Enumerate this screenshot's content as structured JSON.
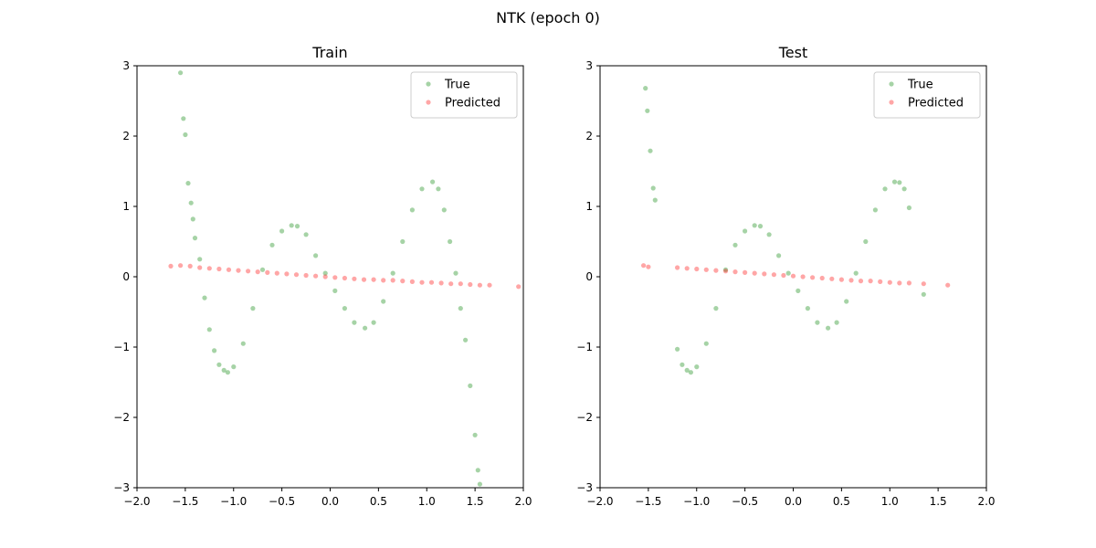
{
  "figure": {
    "suptitle": "NTK (epoch 0)"
  },
  "chart_data": [
    {
      "type": "scatter",
      "title": "Train",
      "xlim": [
        -2.0,
        2.0
      ],
      "ylim": [
        -3,
        3
      ],
      "xticks": [
        "−2.0",
        "−1.5",
        "−1.0",
        "−0.5",
        "0.0",
        "0.5",
        "1.0",
        "1.5",
        "2.0"
      ],
      "yticks": [
        "−3",
        "−2",
        "−1",
        "0",
        "1",
        "2",
        "3"
      ],
      "legend": "top-right",
      "grid": false,
      "series": [
        {
          "name": "True",
          "color": "#008000",
          "x": [
            -1.55,
            -1.52,
            -1.5,
            -1.47,
            -1.44,
            -1.42,
            -1.4,
            -1.35,
            -1.3,
            -1.25,
            -1.2,
            -1.15,
            -1.1,
            -1.06,
            -1.0,
            -0.9,
            -0.8,
            -0.7,
            -0.6,
            -0.5,
            -0.4,
            -0.34,
            -0.25,
            -0.15,
            -0.05,
            0.05,
            0.15,
            0.25,
            0.36,
            0.45,
            0.55,
            0.65,
            0.75,
            0.85,
            0.95,
            1.06,
            1.12,
            1.18,
            1.24,
            1.3,
            1.35,
            1.4,
            1.45,
            1.5,
            1.53,
            1.55
          ],
          "y": [
            2.9,
            2.25,
            2.02,
            1.33,
            1.05,
            0.82,
            0.55,
            0.25,
            -0.3,
            -0.75,
            -1.05,
            -1.25,
            -1.33,
            -1.36,
            -1.28,
            -0.95,
            -0.45,
            0.1,
            0.45,
            0.65,
            0.73,
            0.72,
            0.6,
            0.3,
            0.05,
            -0.2,
            -0.45,
            -0.65,
            -0.73,
            -0.65,
            -0.35,
            0.05,
            0.5,
            0.95,
            1.25,
            1.35,
            1.25,
            0.95,
            0.5,
            0.05,
            -0.45,
            -0.9,
            -1.55,
            -2.25,
            -2.75,
            -2.95
          ]
        },
        {
          "name": "Predicted",
          "color": "#ff0000",
          "x": [
            -1.65,
            -1.55,
            -1.45,
            -1.35,
            -1.25,
            -1.15,
            -1.05,
            -0.95,
            -0.85,
            -0.75,
            -0.65,
            -0.55,
            -0.45,
            -0.35,
            -0.25,
            -0.15,
            -0.05,
            0.05,
            0.15,
            0.25,
            0.35,
            0.45,
            0.55,
            0.65,
            0.75,
            0.85,
            0.95,
            1.05,
            1.15,
            1.25,
            1.35,
            1.45,
            1.55,
            1.65,
            1.95
          ],
          "y": [
            0.15,
            0.16,
            0.15,
            0.13,
            0.12,
            0.11,
            0.1,
            0.09,
            0.08,
            0.07,
            0.06,
            0.05,
            0.04,
            0.03,
            0.02,
            0.01,
            0.0,
            -0.01,
            -0.02,
            -0.03,
            -0.04,
            -0.04,
            -0.05,
            -0.05,
            -0.06,
            -0.07,
            -0.08,
            -0.08,
            -0.09,
            -0.1,
            -0.1,
            -0.11,
            -0.12,
            -0.12,
            -0.14
          ]
        }
      ]
    },
    {
      "type": "scatter",
      "title": "Test",
      "xlim": [
        -2.0,
        2.0
      ],
      "ylim": [
        -3,
        3
      ],
      "xticks": [
        "−2.0",
        "−1.5",
        "−1.0",
        "−0.5",
        "0.0",
        "0.5",
        "1.0",
        "1.5",
        "2.0"
      ],
      "yticks": [
        "−3",
        "−2",
        "−1",
        "0",
        "1",
        "2",
        "3"
      ],
      "legend": "top-right",
      "grid": false,
      "series": [
        {
          "name": "True",
          "color": "#008000",
          "x": [
            -1.53,
            -1.51,
            -1.48,
            -1.45,
            -1.43,
            -1.2,
            -1.15,
            -1.1,
            -1.06,
            -1.0,
            -0.9,
            -0.8,
            -0.7,
            -0.6,
            -0.5,
            -0.4,
            -0.34,
            -0.25,
            -0.15,
            -0.05,
            0.05,
            0.15,
            0.25,
            0.36,
            0.45,
            0.55,
            0.65,
            0.75,
            0.85,
            0.95,
            1.05,
            1.1,
            1.15,
            1.2,
            1.35
          ],
          "y": [
            2.68,
            2.36,
            1.79,
            1.26,
            1.09,
            -1.03,
            -1.25,
            -1.33,
            -1.36,
            -1.28,
            -0.95,
            -0.45,
            0.1,
            0.45,
            0.65,
            0.73,
            0.72,
            0.6,
            0.3,
            0.05,
            -0.2,
            -0.45,
            -0.65,
            -0.73,
            -0.65,
            -0.35,
            0.05,
            0.5,
            0.95,
            1.25,
            1.35,
            1.34,
            1.25,
            0.98,
            -0.25
          ]
        },
        {
          "name": "Predicted",
          "color": "#ff0000",
          "x": [
            -1.55,
            -1.5,
            -1.2,
            -1.1,
            -1.0,
            -0.9,
            -0.8,
            -0.7,
            -0.6,
            -0.5,
            -0.4,
            -0.3,
            -0.2,
            -0.1,
            0.0,
            0.1,
            0.2,
            0.3,
            0.4,
            0.5,
            0.6,
            0.7,
            0.8,
            0.9,
            1.0,
            1.1,
            1.2,
            1.35,
            1.6
          ],
          "y": [
            0.16,
            0.14,
            0.13,
            0.12,
            0.11,
            0.1,
            0.09,
            0.08,
            0.07,
            0.06,
            0.05,
            0.04,
            0.03,
            0.02,
            0.01,
            0.0,
            -0.01,
            -0.02,
            -0.03,
            -0.04,
            -0.05,
            -0.06,
            -0.06,
            -0.07,
            -0.08,
            -0.09,
            -0.09,
            -0.1,
            -0.12
          ]
        }
      ]
    }
  ]
}
